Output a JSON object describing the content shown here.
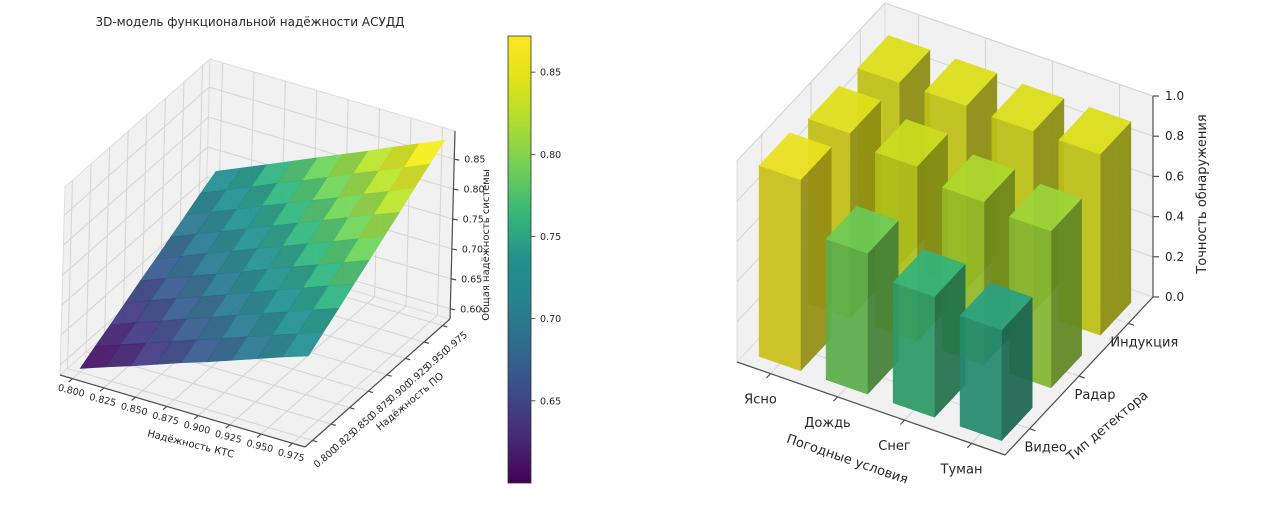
{
  "style": {
    "background": "#ffffff",
    "pane": "#f1f1f2",
    "grid": "#d4d4d4",
    "axis_line": "#4d4d4d",
    "text": "#262626",
    "colormap": "viridis"
  },
  "chart_data": [
    {
      "type": "surface",
      "title": "3D-модель функциональной надёжности АСУДД",
      "xlabel": "Надёжность КТС",
      "ylabel": "Надёжность ПО",
      "zlabel": "Общая надёжность системы",
      "colormap": "viridis",
      "x": [
        0.8,
        0.82,
        0.84,
        0.86,
        0.88,
        0.9,
        0.92,
        0.94,
        0.96,
        0.98
      ],
      "y": [
        0.8,
        0.82,
        0.84,
        0.86,
        0.88,
        0.9,
        0.92,
        0.94,
        0.96,
        0.98
      ],
      "z": [
        [
          0.589,
          0.604,
          0.618,
          0.633,
          0.648,
          0.662,
          0.677,
          0.692,
          0.707,
          0.721
        ],
        [
          0.604,
          0.619,
          0.634,
          0.649,
          0.664,
          0.679,
          0.694,
          0.709,
          0.724,
          0.739
        ],
        [
          0.618,
          0.634,
          0.649,
          0.665,
          0.68,
          0.696,
          0.711,
          0.726,
          0.742,
          0.757
        ],
        [
          0.633,
          0.649,
          0.665,
          0.68,
          0.696,
          0.712,
          0.728,
          0.744,
          0.76,
          0.775
        ],
        [
          0.648,
          0.664,
          0.68,
          0.696,
          0.712,
          0.729,
          0.745,
          0.761,
          0.777,
          0.793
        ],
        [
          0.662,
          0.679,
          0.696,
          0.712,
          0.729,
          0.745,
          0.762,
          0.778,
          0.795,
          0.811
        ],
        [
          0.677,
          0.694,
          0.711,
          0.728,
          0.745,
          0.762,
          0.779,
          0.796,
          0.813,
          0.829
        ],
        [
          0.692,
          0.709,
          0.726,
          0.744,
          0.761,
          0.778,
          0.795,
          0.813,
          0.83,
          0.848
        ],
        [
          0.707,
          0.724,
          0.742,
          0.76,
          0.777,
          0.795,
          0.813,
          0.83,
          0.848,
          0.866
        ],
        [
          0.721,
          0.739,
          0.757,
          0.775,
          0.793,
          0.811,
          0.829,
          0.848,
          0.866,
          0.884
        ]
      ],
      "x_ticks": [
        "0.800",
        "0.825",
        "0.850",
        "0.875",
        "0.900",
        "0.925",
        "0.950",
        "0.975"
      ],
      "y_ticks": [
        "0.800",
        "0.825",
        "0.850",
        "0.875",
        "0.900",
        "0.925",
        "0.950",
        "0.975"
      ],
      "z_ticks": [
        "0.60",
        "0.65",
        "0.70",
        "0.75",
        "0.80",
        "0.85"
      ],
      "x_axis_range": [
        0.79,
        0.985
      ],
      "z_axis_range": [
        0.583,
        0.897
      ],
      "grid": true,
      "colorbar": {
        "ticks": [
          "0.65",
          "0.70",
          "0.75",
          "0.80",
          "0.85"
        ],
        "vmin": 0.6,
        "vmax": 0.872
      }
    },
    {
      "type": "bar3d",
      "xlabel": "Погодные условия",
      "ylabel": "Тип детектора",
      "zlabel": "Точность обнаружения",
      "colormap": "viridis",
      "categories": [
        "Ясно",
        "Дождь",
        "Снег",
        "Туман"
      ],
      "series": [
        {
          "name": "Видео",
          "values": [
            0.95,
            0.7,
            0.6,
            0.55
          ]
        },
        {
          "name": "Радар",
          "values": [
            0.92,
            0.87,
            0.81,
            0.78
          ]
        },
        {
          "name": "Индукция",
          "values": [
            0.91,
            0.91,
            0.9,
            0.9
          ]
        }
      ],
      "z_ticks": [
        "0.0",
        "0.2",
        "0.4",
        "0.6",
        "0.8",
        "1.0"
      ],
      "zlim": [
        0.0,
        1.0
      ],
      "grid": true
    }
  ]
}
